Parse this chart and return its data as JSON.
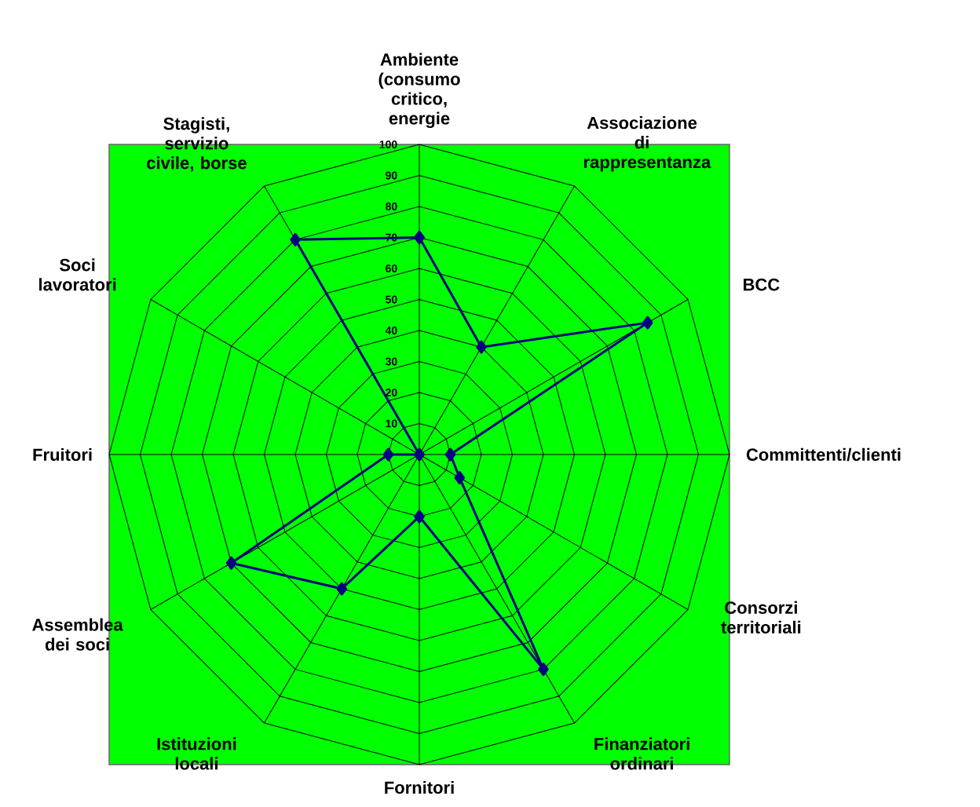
{
  "chart_data": {
    "type": "radar",
    "categories": [
      "Ambiente (consumo critico, energie",
      "Associazione di rappresentanza",
      "BCC",
      "Committenti/clienti",
      "Consorzi territoriali",
      "Finanziatori ordinari",
      "Fornitori",
      "Istituzioni locali",
      "Assemblea dei soci",
      "Fruitori",
      "Soci lavoratori",
      "Stagisti, servizio civile, borse"
    ],
    "series": [
      {
        "color": "#000080",
        "values": [
          70,
          40,
          85,
          10,
          15,
          80,
          20,
          50,
          70,
          10,
          0,
          80
        ]
      }
    ],
    "ylim": [
      0,
      100
    ],
    "yticks": [
      10,
      20,
      30,
      40,
      50,
      60,
      70,
      80,
      90,
      100
    ],
    "grid": true,
    "marker": "diamond",
    "line_style": "solid"
  }
}
